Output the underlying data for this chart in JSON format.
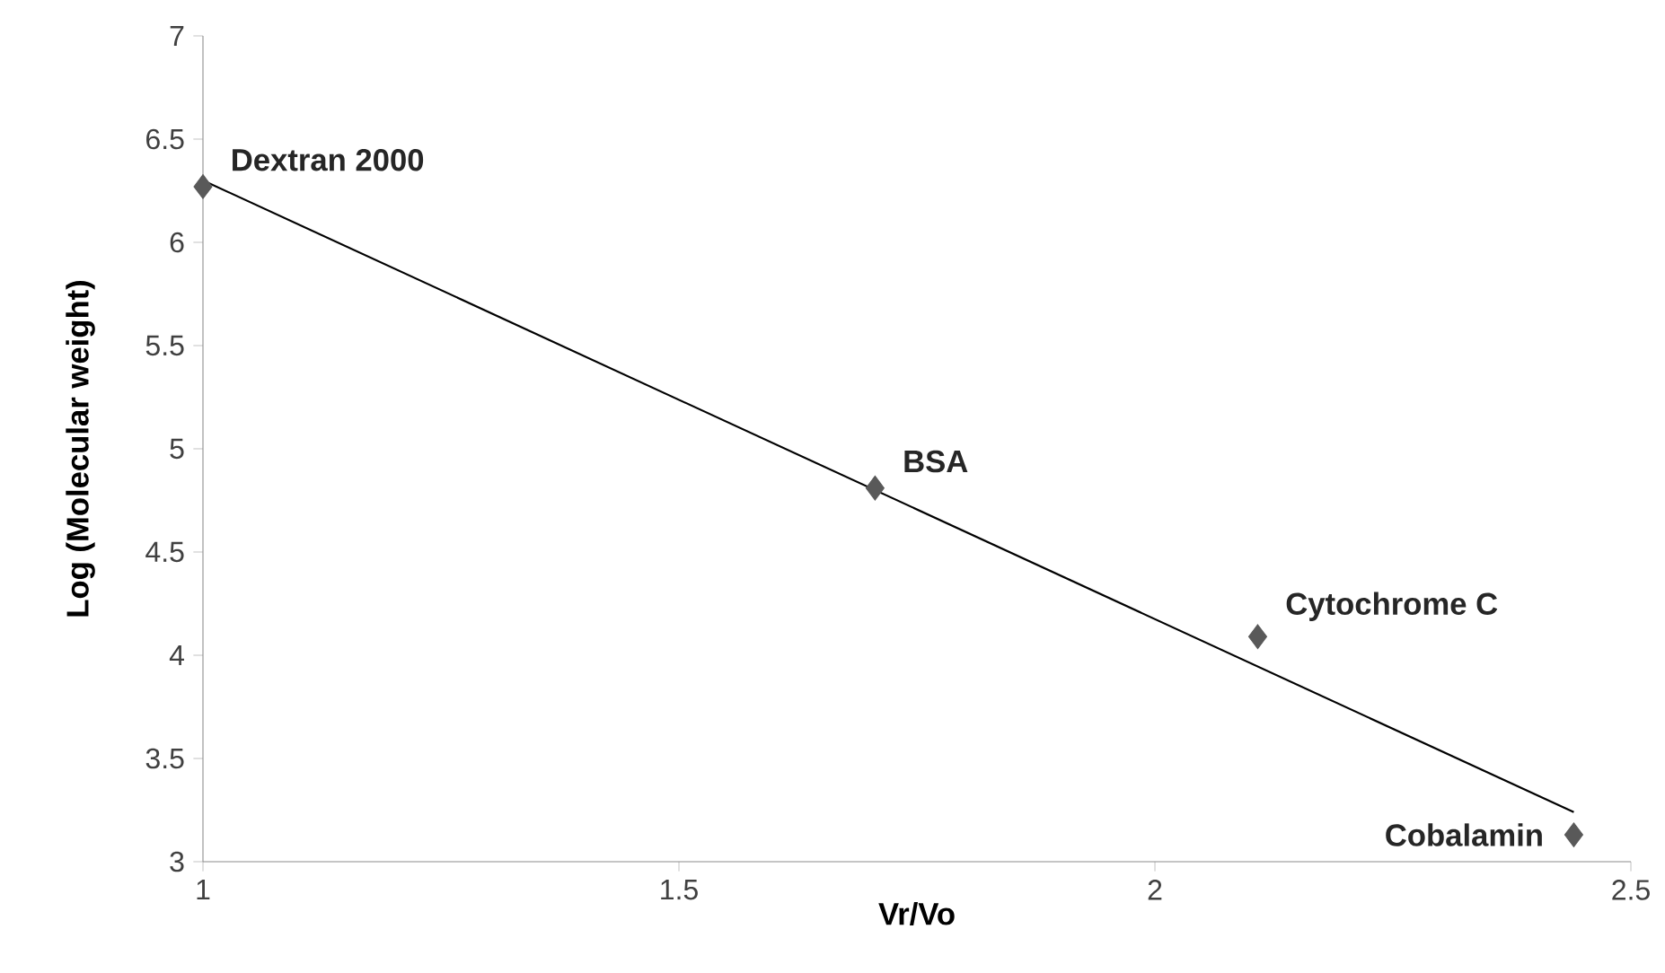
{
  "chart_data": {
    "type": "scatter",
    "xlabel": "Vr/Vo",
    "ylabel": "Log (Molecular weight)",
    "xlim": [
      1,
      2.5
    ],
    "xticks": [
      1,
      1.5,
      2,
      2.5
    ],
    "ylim": [
      3,
      7
    ],
    "yticks": [
      3,
      3.5,
      4,
      4.5,
      5,
      5.5,
      6,
      6.5,
      7
    ],
    "marker": "diamond",
    "series": [
      {
        "color": "#595959",
        "x": [
          1,
          1.706,
          2.108,
          2.44
        ],
        "values": [
          6.27,
          4.81,
          4.09,
          3.13
        ]
      },
      {
        "type": "line",
        "marker": "none",
        "color": "#000000",
        "x": [
          1,
          2.44
        ],
        "values": [
          6.3,
          3.24
        ]
      }
    ],
    "annotations": [
      {
        "text": "Dextran 2000",
        "x": 1,
        "y": 6.27
      },
      {
        "text": "BSA",
        "x": 1.706,
        "y": 4.81
      },
      {
        "text": "Cytochrome C",
        "x": 2.108,
        "y": 4.09
      },
      {
        "text": "Cobalamin",
        "x": 2.44,
        "y": 3.13
      }
    ]
  }
}
